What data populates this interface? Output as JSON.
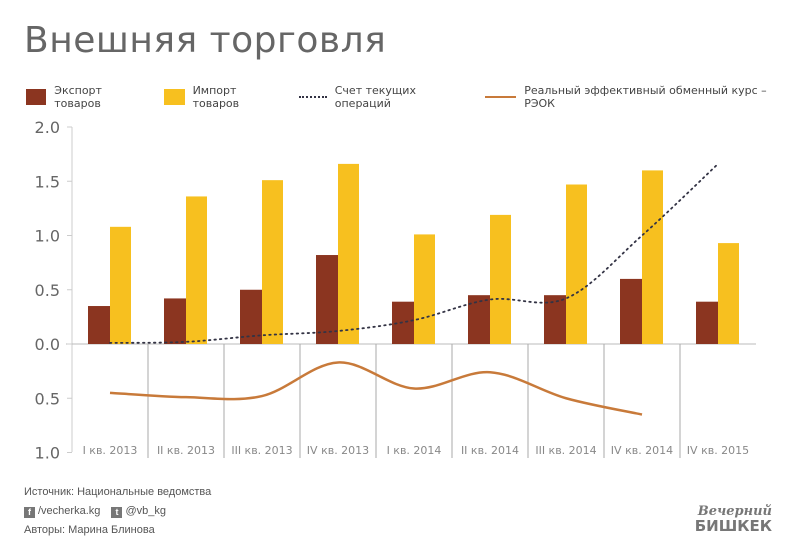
{
  "title": "Внешняя торговля",
  "chart_data": {
    "type": "bar",
    "title": "Внешняя торговля",
    "categories": [
      "I кв. 2013",
      "II кв. 2013",
      "III кв. 2013",
      "IV кв. 2013",
      "I кв. 2014",
      "II кв. 2014",
      "III кв. 2014",
      "IV кв. 2014",
      "IV кв. 2015"
    ],
    "series": [
      {
        "name": "Экспорт товаров",
        "type": "bar",
        "color": "#8b3520",
        "values": [
          0.35,
          0.42,
          0.5,
          0.82,
          0.39,
          0.45,
          0.45,
          0.6,
          0.39
        ]
      },
      {
        "name": "Импорт товаров",
        "type": "bar",
        "color": "#f7c01f",
        "values": [
          1.08,
          1.36,
          1.51,
          1.66,
          1.01,
          1.19,
          1.47,
          1.6,
          0.93
        ]
      },
      {
        "name": "Счет текущих операций",
        "type": "line",
        "style": "dotted",
        "color": "#334",
        "values": [
          0.01,
          0.02,
          0.08,
          0.12,
          0.22,
          0.41,
          0.42,
          1.0,
          1.66
        ]
      },
      {
        "name": "Реальный эффективный обменный курс – РЭОК",
        "type": "line",
        "axis": "lower-inverted",
        "color": "#c87a3a",
        "values": [
          0.45,
          0.49,
          0.48,
          0.17,
          0.41,
          0.26,
          0.5,
          0.65,
          null
        ]
      }
    ],
    "yticks_upper": [
      "2.0",
      "1.5",
      "1.0",
      "0.5",
      "0.0"
    ],
    "yticks_lower": [
      "0.5",
      "1.0"
    ],
    "ylim_upper": [
      0,
      2
    ],
    "ylim_lower": [
      0,
      1
    ],
    "grid": false,
    "legend": "top"
  },
  "footer": {
    "source": "Источник: Национальные ведомства",
    "facebook": "/vecherka.kg",
    "twitter": "@vb_kg",
    "authors": "Авторы: Марина Блинова",
    "logo": "Вечерний БИШКЕК"
  }
}
